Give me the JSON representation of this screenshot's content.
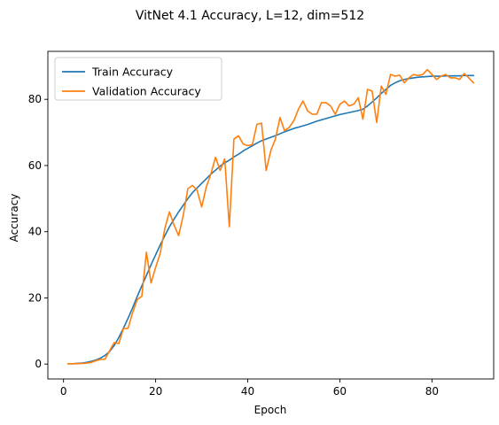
{
  "chart_data": {
    "type": "line",
    "title": "VitNet 4.1 Accuracy, L=12, dim=512",
    "xlabel": "Epoch",
    "ylabel": "Accuracy",
    "xlim": [
      -3.4,
      93.4
    ],
    "ylim": [
      -4.5,
      94.5
    ],
    "xticks": [
      0,
      20,
      40,
      60,
      80
    ],
    "yticks": [
      0,
      20,
      40,
      60,
      80
    ],
    "grid": false,
    "legend_position": "top-left",
    "x": [
      1,
      2,
      3,
      4,
      5,
      6,
      7,
      8,
      9,
      10,
      11,
      12,
      13,
      14,
      15,
      16,
      17,
      18,
      19,
      20,
      21,
      22,
      23,
      24,
      25,
      26,
      27,
      28,
      29,
      30,
      31,
      32,
      33,
      34,
      35,
      36,
      37,
      38,
      39,
      40,
      41,
      42,
      43,
      44,
      45,
      46,
      47,
      48,
      49,
      50,
      51,
      52,
      53,
      54,
      55,
      56,
      57,
      58,
      59,
      60,
      61,
      62,
      63,
      64,
      65,
      66,
      67,
      68,
      69,
      70,
      71,
      72,
      73,
      74,
      75,
      76,
      77,
      78,
      79,
      80,
      81,
      82,
      83,
      84,
      85,
      86,
      87,
      88,
      89
    ],
    "series": [
      {
        "name": "Train Accuracy",
        "color": "#1f77b4",
        "values": [
          0.1,
          0.1,
          0.2,
          0.3,
          0.5,
          0.8,
          1.2,
          1.8,
          2.6,
          3.8,
          5.6,
          8.0,
          10.8,
          13.8,
          17.0,
          20.4,
          23.6,
          26.8,
          30.0,
          33.0,
          36.0,
          38.8,
          41.5,
          43.8,
          46.0,
          48.0,
          50.0,
          51.8,
          53.2,
          54.6,
          56.0,
          57.4,
          58.6,
          59.8,
          60.8,
          61.6,
          62.6,
          63.4,
          64.4,
          65.2,
          66.0,
          66.8,
          67.5,
          68.0,
          68.5,
          69.0,
          69.6,
          70.2,
          70.7,
          71.2,
          71.6,
          72.0,
          72.4,
          72.9,
          73.4,
          73.8,
          74.2,
          74.6,
          75.0,
          75.4,
          75.7,
          76.0,
          76.3,
          76.6,
          77.0,
          78.0,
          79.2,
          80.4,
          81.8,
          83.0,
          84.2,
          85.0,
          85.6,
          86.0,
          86.3,
          86.5,
          86.7,
          86.8,
          86.9,
          87.0,
          87.0,
          87.0,
          87.1,
          87.1,
          87.1,
          87.1,
          87.2,
          87.2,
          87.2
        ]
      },
      {
        "name": "Validation Accuracy",
        "color": "#ff7f0e",
        "values": [
          0.1,
          0.1,
          0.1,
          0.2,
          0.3,
          0.5,
          1.0,
          1.4,
          1.5,
          4.0,
          6.5,
          6.2,
          10.7,
          10.8,
          15.5,
          19.5,
          20.5,
          33.8,
          24.5,
          29.2,
          33.5,
          41.0,
          46.0,
          42.0,
          38.8,
          45.0,
          53.0,
          54.0,
          52.5,
          47.5,
          53.5,
          57.5,
          62.5,
          58.5,
          62.0,
          41.5,
          68.0,
          69.0,
          66.5,
          66.0,
          66.3,
          72.5,
          72.8,
          58.5,
          64.5,
          68.0,
          74.5,
          70.5,
          71.5,
          73.5,
          77.0,
          79.5,
          76.5,
          75.5,
          75.5,
          79.0,
          79.0,
          78.0,
          75.5,
          78.5,
          79.5,
          78.0,
          78.5,
          80.5,
          74.0,
          83.0,
          82.5,
          73.0,
          84.0,
          81.5,
          87.5,
          87.0,
          87.3,
          85.0,
          86.5,
          87.5,
          87.2,
          87.5,
          89.0,
          87.5,
          86.0,
          87.0,
          87.5,
          86.5,
          86.5,
          86.0,
          87.8,
          86.5,
          85.0
        ]
      }
    ]
  }
}
